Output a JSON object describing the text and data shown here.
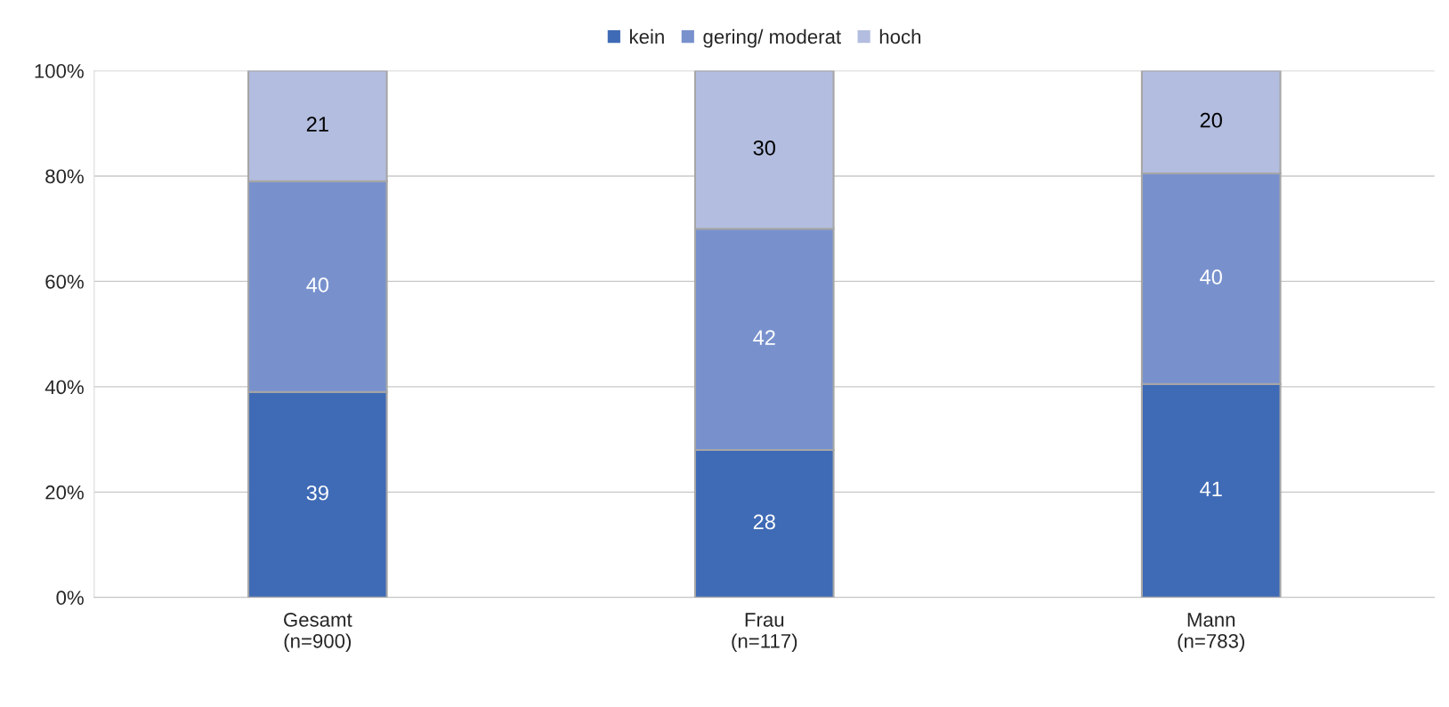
{
  "chart_data": {
    "type": "bar",
    "stacked": true,
    "categories": [
      "Gesamt\n(n=900)",
      "Frau\n(n=117)",
      "Mann\n(n=783)"
    ],
    "series": [
      {
        "name": "kein",
        "color": "#3f6ab5",
        "values": [
          39,
          28,
          40.5
        ],
        "value_labels": [
          "39",
          "28",
          "41"
        ]
      },
      {
        "name": "gering/ moderat",
        "color": "#7891cd",
        "values": [
          40,
          42,
          40
        ],
        "value_labels": [
          "40",
          "42",
          "40"
        ]
      },
      {
        "name": "hoch",
        "color": "#b3bddf",
        "values": [
          21,
          30,
          19.5
        ],
        "value_labels": [
          "21",
          "30",
          "20"
        ]
      }
    ],
    "ylim": [
      0,
      100
    ],
    "yticks": [
      {
        "value": 0,
        "label": "0%"
      },
      {
        "value": 20,
        "label": "20%"
      },
      {
        "value": 40,
        "label": "40%"
      },
      {
        "value": 60,
        "label": "60%"
      },
      {
        "value": 80,
        "label": "80%"
      },
      {
        "value": 100,
        "label": "100%"
      }
    ],
    "grid": "y",
    "legend": "top"
  }
}
